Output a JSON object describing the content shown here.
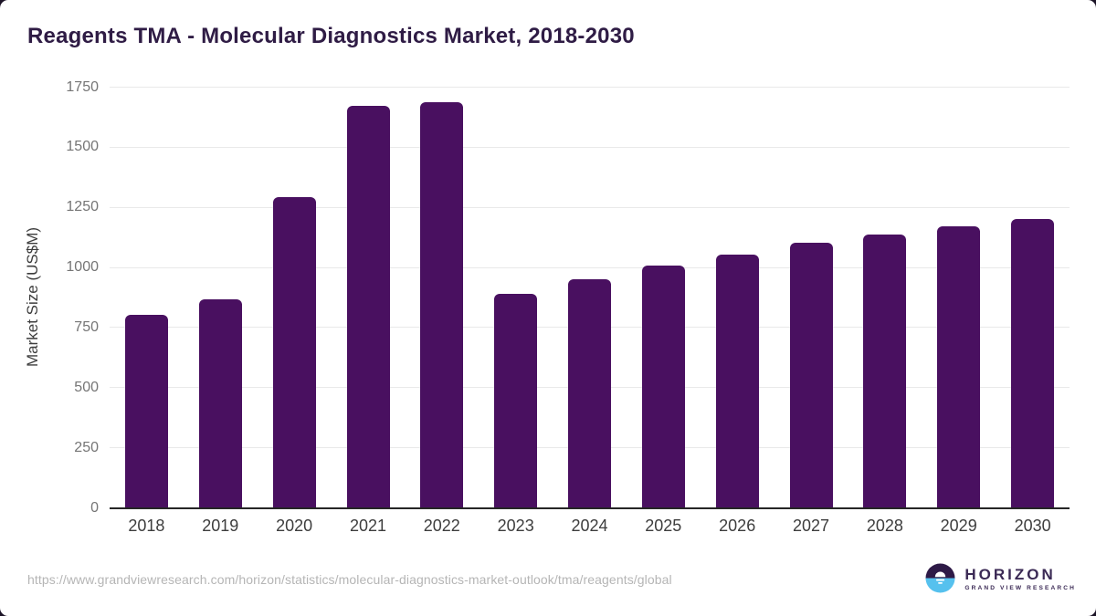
{
  "page": {
    "background_color": "#1c1427",
    "card_color": "#ffffff"
  },
  "header": {
    "title": "Reagents TMA - Molecular Diagnostics Market, 2018-2030",
    "title_color": "#2f1c45"
  },
  "chart_data": {
    "type": "bar",
    "title": "Reagents TMA - Molecular Diagnostics Market, 2018-2030",
    "categories": [
      "2018",
      "2019",
      "2020",
      "2021",
      "2022",
      "2023",
      "2024",
      "2025",
      "2026",
      "2027",
      "2028",
      "2029",
      "2030"
    ],
    "values": [
      800,
      865,
      1290,
      1670,
      1685,
      890,
      950,
      1005,
      1050,
      1100,
      1135,
      1170,
      1200
    ],
    "xlabel": "",
    "ylabel": "Market Size (US$M)",
    "ylim": [
      0,
      1750
    ],
    "yticks": [
      0,
      250,
      500,
      750,
      1000,
      1250,
      1500,
      1750
    ],
    "grid": true,
    "legend": "none",
    "bar_color": "#491060",
    "gridline_color": "#e9e9e9",
    "axis_line_color": "#262626",
    "y_tick_label_color": "#757575",
    "x_tick_label_color": "#3d3d3d"
  },
  "footer": {
    "source_url": "https://www.grandviewresearch.com/horizon/statistics/molecular-diagnostics-market-outlook/tma/reagents/global",
    "logo": {
      "brand": "HORIZON",
      "tagline": "GRAND VIEW RESEARCH",
      "brand_color": "#3b2a55",
      "mark_top_color": "#2e1a47",
      "mark_bottom_color": "#56c1ee"
    }
  }
}
